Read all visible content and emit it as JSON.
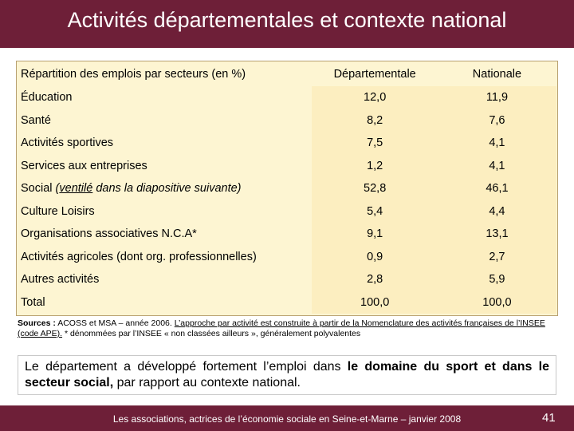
{
  "slide": {
    "title": "Activités départementales et contexte national",
    "footer": "Les associations, actrices de l’économie sociale en Seine-et-Marne – janvier 2008",
    "page_number": "41"
  },
  "table": {
    "headers": [
      "Répartition des emplois par secteurs (en %)",
      "Départementale",
      "Nationale"
    ],
    "rows": [
      {
        "label": "Éducation",
        "dep": "12,0",
        "nat": "11,9"
      },
      {
        "label": "Santé",
        "dep": "8,2",
        "nat": "7,6"
      },
      {
        "label": "Activités sportives",
        "dep": "7,5",
        "nat": "4,1"
      },
      {
        "label": "Services aux entreprises",
        "dep": "1,2",
        "nat": "4,1"
      },
      {
        "label": "Social ",
        "label_note_pre": "(",
        "label_note_ul": "ventilé",
        "label_note_post": " dans la diapositive suivante)",
        "dep": "52,8",
        "nat": "46,1"
      },
      {
        "label": "Culture Loisirs",
        "dep": "5,4",
        "nat": "4,4"
      },
      {
        "label": "Organisations associatives N.C.A*",
        "dep": "9,1",
        "nat": "13,1"
      },
      {
        "label": "Activités agricoles (dont org. professionnelles)",
        "dep": "0,9",
        "nat": "2,7"
      },
      {
        "label": "Autres activités",
        "dep": "2,8",
        "nat": "5,9"
      },
      {
        "label": "Total",
        "dep": "100,0",
        "nat": "100,0"
      }
    ]
  },
  "sources": {
    "label": "Sources :",
    "text1": " ACOSS et MSA – année 2006. ",
    "underlined": "L’approche par activité est construite à partir de la Nomenclature des activités françaises de l’INSEE (code APE).",
    "text2": "   * dénommées par l’INSEE « non classées ailleurs », généralement polyvalentes"
  },
  "conclusion": {
    "part1": "Le département a développé fortement l’emploi dans ",
    "bold1": "le domaine du sport et dans le secteur social,",
    "part2": " par rapport au contexte national."
  }
}
